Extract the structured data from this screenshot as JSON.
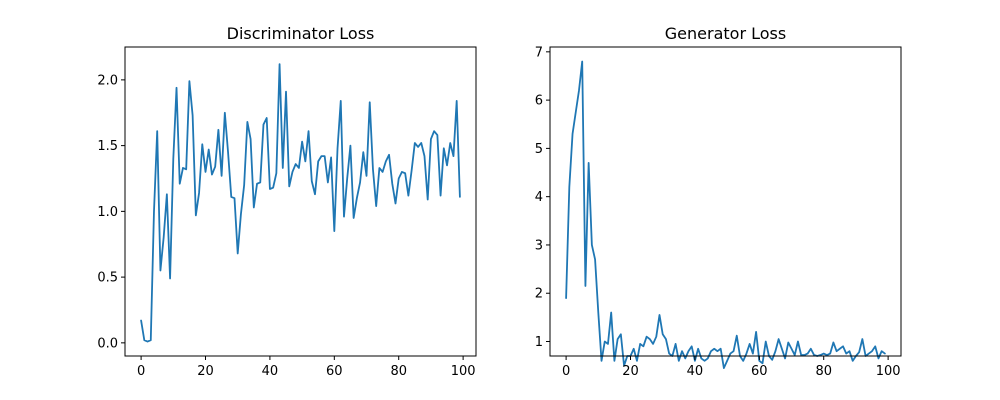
{
  "chart_data": [
    {
      "type": "line",
      "title": "Discriminator Loss",
      "xlabel": "",
      "ylabel": "",
      "xlim": [
        -5,
        104
      ],
      "ylim": [
        -0.1,
        2.25
      ],
      "xticks": [
        0,
        20,
        40,
        60,
        80,
        100
      ],
      "xtick_labels": [
        "0",
        "20",
        "40",
        "60",
        "80",
        "100"
      ],
      "yticks": [
        0.0,
        0.5,
        1.0,
        1.5,
        2.0
      ],
      "ytick_labels": [
        "0.0",
        "0.5",
        "1.0",
        "1.5",
        "2.0"
      ],
      "grid": false,
      "series": [
        {
          "color": "#1f77b4",
          "x": [
            0,
            1,
            2,
            3,
            4,
            5,
            6,
            7,
            8,
            9,
            10,
            11,
            12,
            13,
            14,
            15,
            16,
            17,
            18,
            19,
            20,
            21,
            22,
            23,
            24,
            25,
            26,
            27,
            28,
            29,
            30,
            31,
            32,
            33,
            34,
            35,
            36,
            37,
            38,
            39,
            40,
            41,
            42,
            43,
            44,
            45,
            46,
            47,
            48,
            49,
            50,
            51,
            52,
            53,
            54,
            55,
            56,
            57,
            58,
            59,
            60,
            61,
            62,
            63,
            64,
            65,
            66,
            67,
            68,
            69,
            70,
            71,
            72,
            73,
            74,
            75,
            76,
            77,
            78,
            79,
            80,
            81,
            82,
            83,
            84,
            85,
            86,
            87,
            88,
            89,
            90,
            91,
            92,
            93,
            94,
            95,
            96,
            97,
            98,
            99
          ],
          "values": [
            0.17,
            0.02,
            0.01,
            0.02,
            1.0,
            1.61,
            0.55,
            0.8,
            1.13,
            0.49,
            1.4,
            1.94,
            1.21,
            1.33,
            1.32,
            1.99,
            1.73,
            0.97,
            1.14,
            1.51,
            1.3,
            1.47,
            1.28,
            1.34,
            1.62,
            1.27,
            1.75,
            1.45,
            1.11,
            1.1,
            0.68,
            0.98,
            1.2,
            1.68,
            1.55,
            1.03,
            1.21,
            1.22,
            1.66,
            1.71,
            1.17,
            1.18,
            1.29,
            2.12,
            1.33,
            1.91,
            1.19,
            1.3,
            1.36,
            1.33,
            1.53,
            1.38,
            1.61,
            1.23,
            1.13,
            1.38,
            1.42,
            1.42,
            1.22,
            1.41,
            0.85,
            1.48,
            1.84,
            0.96,
            1.25,
            1.5,
            0.95,
            1.1,
            1.22,
            1.45,
            1.27,
            1.83,
            1.32,
            1.04,
            1.33,
            1.3,
            1.38,
            1.43,
            1.21,
            1.06,
            1.25,
            1.3,
            1.29,
            1.12,
            1.31,
            1.52,
            1.49,
            1.52,
            1.42,
            1.09,
            1.55,
            1.61,
            1.58,
            1.12,
            1.48,
            1.35,
            1.52,
            1.42,
            1.84,
            1.11
          ]
        }
      ]
    },
    {
      "type": "line",
      "title": "Generator Loss",
      "xlabel": "",
      "ylabel": "",
      "xlim": [
        -5,
        104
      ],
      "ylim": [
        0.7,
        7.1
      ],
      "xticks": [
        0,
        20,
        40,
        60,
        80,
        100
      ],
      "xtick_labels": [
        "0",
        "20",
        "40",
        "60",
        "80",
        "100"
      ],
      "yticks": [
        1,
        2,
        3,
        4,
        5,
        6,
        7
      ],
      "ytick_labels": [
        "1",
        "2",
        "3",
        "4",
        "5",
        "6",
        "7"
      ],
      "grid": false,
      "series": [
        {
          "color": "#1f77b4",
          "x": [
            0,
            1,
            2,
            3,
            4,
            5,
            6,
            7,
            8,
            9,
            10,
            11,
            12,
            13,
            14,
            15,
            16,
            17,
            18,
            19,
            20,
            21,
            22,
            23,
            24,
            25,
            26,
            27,
            28,
            29,
            30,
            31,
            32,
            33,
            34,
            35,
            36,
            37,
            38,
            39,
            40,
            41,
            42,
            43,
            44,
            45,
            46,
            47,
            48,
            49,
            50,
            51,
            52,
            53,
            54,
            55,
            56,
            57,
            58,
            59,
            60,
            61,
            62,
            63,
            64,
            65,
            66,
            67,
            68,
            69,
            70,
            71,
            72,
            73,
            74,
            75,
            76,
            77,
            78,
            79,
            80,
            81,
            82,
            83,
            84,
            85,
            86,
            87,
            88,
            89,
            90,
            91,
            92,
            93,
            94,
            95,
            96,
            97,
            98,
            99
          ],
          "values": [
            1.9,
            4.2,
            5.3,
            5.75,
            6.2,
            6.8,
            2.15,
            4.7,
            3.0,
            2.7,
            1.6,
            0.6,
            1.0,
            0.95,
            1.6,
            0.6,
            1.05,
            1.15,
            0.5,
            0.7,
            0.7,
            0.85,
            0.6,
            0.95,
            0.9,
            1.1,
            1.05,
            0.95,
            1.1,
            1.55,
            1.15,
            1.05,
            0.75,
            0.7,
            0.95,
            0.6,
            0.8,
            0.65,
            0.8,
            0.9,
            0.6,
            0.85,
            0.65,
            0.6,
            0.65,
            0.8,
            0.85,
            0.8,
            0.85,
            0.45,
            0.6,
            0.75,
            0.8,
            1.12,
            0.7,
            0.6,
            0.75,
            0.95,
            0.75,
            1.2,
            0.6,
            0.55,
            1.0,
            0.7,
            0.62,
            0.8,
            1.05,
            0.85,
            0.65,
            0.98,
            0.85,
            0.72,
            1.0,
            0.72,
            0.72,
            0.75,
            0.85,
            0.72,
            0.7,
            0.72,
            0.75,
            0.72,
            0.75,
            0.98,
            0.8,
            0.85,
            0.9,
            0.75,
            0.8,
            0.6,
            0.7,
            0.78,
            1.05,
            0.7,
            0.75,
            0.8,
            0.9,
            0.65,
            0.8,
            0.75
          ]
        }
      ]
    }
  ]
}
